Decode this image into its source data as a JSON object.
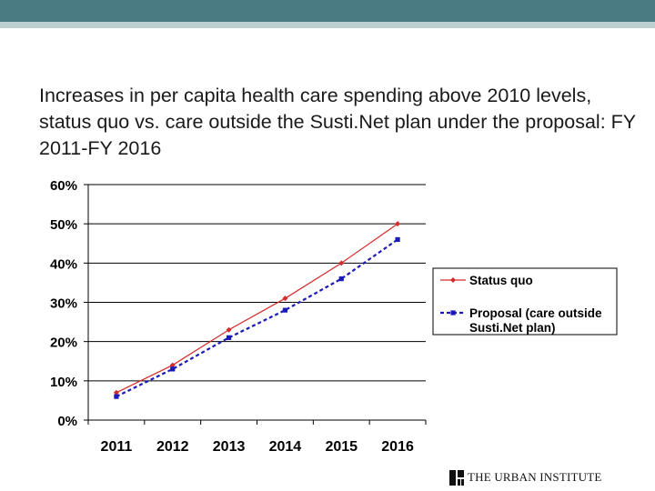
{
  "slide": {
    "title": "Increases in per capita health care spending above 2010 levels, status quo vs. care outside the Susti.Net plan under the proposal: FY 2011-FY 2016",
    "footer_logo": "THE URBAN INSTITUTE"
  },
  "colors": {
    "header_bar": "#4a7b82",
    "header_strip": "#bccfd1",
    "status_quo": "#d42a2a",
    "proposal": "#1a1ab8"
  },
  "chart_data": {
    "type": "line",
    "title": "",
    "xlabel": "",
    "ylabel": "",
    "categories": [
      "2011",
      "2012",
      "2013",
      "2014",
      "2015",
      "2016"
    ],
    "y_ticks": [
      "0%",
      "10%",
      "20%",
      "30%",
      "40%",
      "50%",
      "60%"
    ],
    "ylim": [
      0,
      60
    ],
    "grid": true,
    "legend_position": "right",
    "series": [
      {
        "name": "Status quo",
        "values": [
          7,
          14,
          23,
          31,
          40,
          50
        ],
        "style": "solid-diamond",
        "color": "#d42a2a"
      },
      {
        "name": "Proposal (care outside Susti.Net plan)",
        "legend_lines": [
          "Proposal (care outside",
          "Susti.Net plan)"
        ],
        "values": [
          6,
          13,
          21,
          28,
          36,
          46
        ],
        "style": "dashed-square",
        "color": "#1a1ab8"
      }
    ]
  }
}
